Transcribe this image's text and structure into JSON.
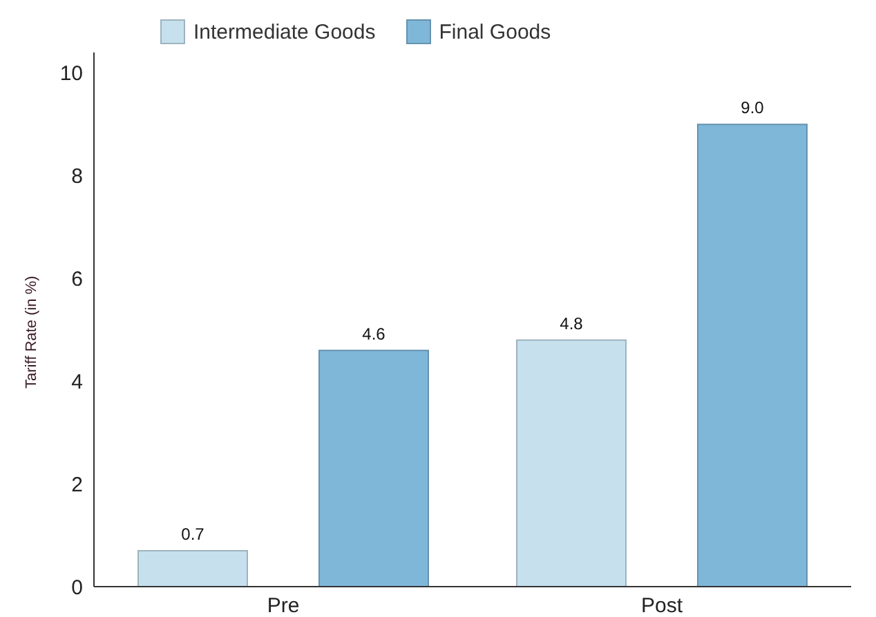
{
  "chart_data": {
    "type": "bar",
    "ylabel": "Tariff Rate (in %)",
    "categories": [
      "Pre",
      "Post"
    ],
    "series": [
      {
        "name": "Intermediate Goods",
        "color": "#c6e0ee",
        "values": [
          0.7,
          4.8
        ],
        "value_labels": [
          "0.7",
          "4.8"
        ]
      },
      {
        "name": "Final Goods",
        "color": "#7fb7d9",
        "values": [
          4.6,
          9.0
        ],
        "value_labels": [
          "4.6",
          "9.0"
        ]
      }
    ],
    "ylim": [
      0,
      10.4
    ],
    "yticks": [
      0,
      2,
      4,
      6,
      8,
      10
    ],
    "grid": false,
    "legend": "top left"
  }
}
